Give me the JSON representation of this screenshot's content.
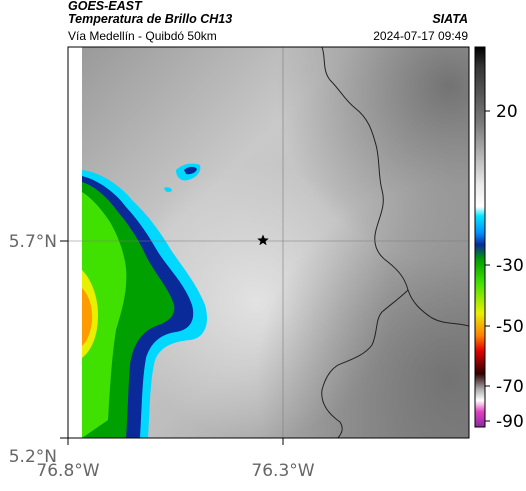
{
  "header": {
    "satellite": "GOES-EAST",
    "product": "Temperatura de Brillo CH13",
    "region": "Vía Medellín - Quibdó 50km",
    "organization": "SIATA",
    "datetime": "2024-07-17 09:49"
  },
  "map": {
    "lat_ticks": [
      "5.7°N",
      "5.2°N"
    ],
    "lon_ticks": [
      "76.8°W",
      "76.3°W"
    ],
    "marker_icon": "star-icon",
    "grid": true
  },
  "colorbar": {
    "ticks": [
      "20",
      "-30",
      "-50",
      "-70",
      "-90"
    ]
  }
}
